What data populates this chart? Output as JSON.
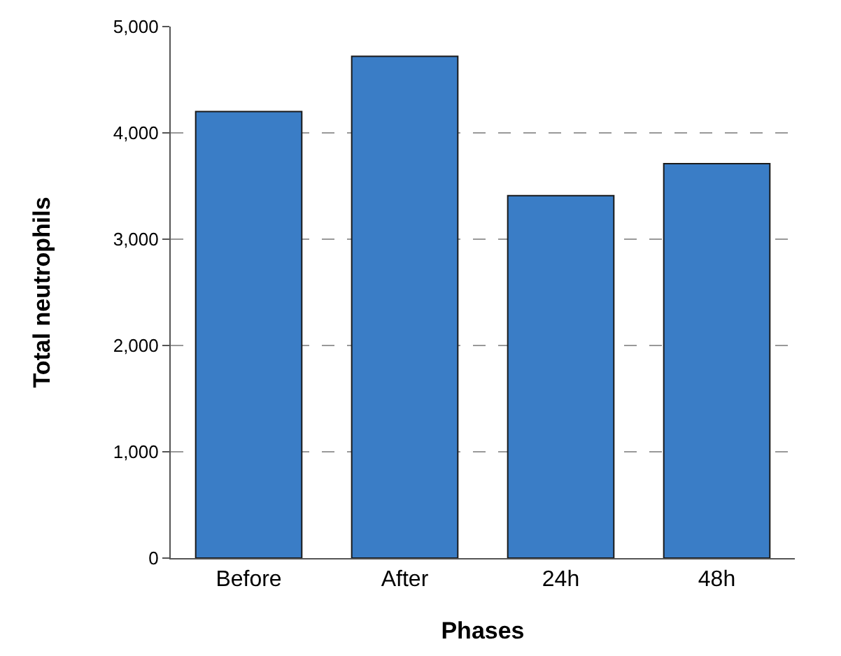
{
  "chart_data": {
    "type": "bar",
    "xlabel": "Phases",
    "ylabel": "Total neutrophils",
    "categories": [
      "Before",
      "After",
      "24h",
      "48h"
    ],
    "values": [
      4200,
      4720,
      3410,
      3710
    ],
    "color": "#3a7dc6",
    "ylim": [
      0,
      5000
    ],
    "yticks": [
      {
        "value": 0,
        "label": "0"
      },
      {
        "value": 1000,
        "label": "1,000"
      },
      {
        "value": 2000,
        "label": "2,000"
      },
      {
        "value": 3000,
        "label": "3,000"
      },
      {
        "value": 4000,
        "label": "4,000"
      },
      {
        "value": 5000,
        "label": "5,000"
      }
    ],
    "grid": "y"
  }
}
